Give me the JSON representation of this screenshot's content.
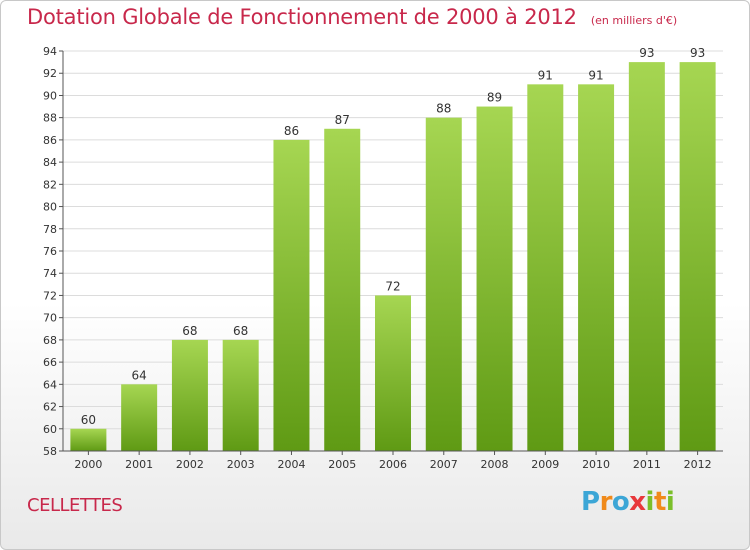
{
  "header": {
    "title": "Dotation Globale de Fonctionnement de 2000 à 2012",
    "unit": "(en milliers d'€)"
  },
  "footer": {
    "commune": "CELLETTES",
    "logo": [
      "P",
      "r",
      "o",
      "x",
      "i",
      "t",
      "i"
    ]
  },
  "colors": {
    "title": "#c8284b",
    "bar_top": "#a6d652",
    "bar_bottom": "#5f9a14",
    "grid": "#dcdcdc",
    "axis": "#555555"
  },
  "chart_data": {
    "type": "bar",
    "title": "Dotation Globale de Fonctionnement de 2000 à 2012",
    "subtitle": "(en milliers d'€)",
    "xlabel": "",
    "ylabel": "",
    "categories": [
      "2000",
      "2001",
      "2002",
      "2003",
      "2004",
      "2005",
      "2006",
      "2007",
      "2008",
      "2009",
      "2010",
      "2011",
      "2012"
    ],
    "values": [
      60,
      64,
      68,
      68,
      86,
      87,
      72,
      88,
      89,
      91,
      91,
      93,
      93
    ],
    "ylim": [
      58,
      94
    ],
    "yticks": [
      58,
      60,
      62,
      64,
      66,
      68,
      70,
      72,
      74,
      76,
      78,
      80,
      82,
      84,
      86,
      88,
      90,
      92,
      94
    ],
    "grid": true,
    "data_labels": true,
    "legend": "none"
  }
}
